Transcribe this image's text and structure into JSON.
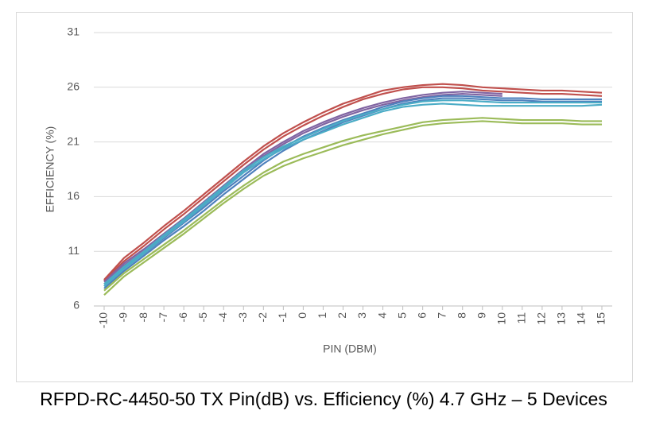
{
  "chart_data": {
    "type": "line",
    "title": "RFPD-RC-4450-50 TX Pin(dB) vs. Efficiency (%) 4.7 GHz – 5 Devices",
    "x_label": "PIN (DBM)",
    "y_label": "EFFICIENCY (%)",
    "x": [
      -10,
      -9,
      -8,
      -7,
      -6,
      -5,
      -4,
      -3,
      -2,
      -1,
      0,
      1,
      2,
      3,
      4,
      5,
      6,
      7,
      8,
      9,
      10,
      11,
      12,
      13,
      14,
      15
    ],
    "xlim": [
      -10,
      15
    ],
    "xticks": [
      -10,
      -9,
      -8,
      -7,
      -6,
      -5,
      -4,
      -3,
      -2,
      -1,
      0,
      1,
      2,
      3,
      4,
      5,
      6,
      7,
      8,
      9,
      10,
      11,
      12,
      13,
      14,
      15
    ],
    "ylim": [
      6,
      31
    ],
    "yticks": [
      6,
      11,
      16,
      21,
      26,
      31
    ],
    "grid": true,
    "series": [
      {
        "color": "#c0504d",
        "values": [
          8.4,
          10.4,
          11.8,
          13.3,
          14.7,
          16.2,
          17.7,
          19.2,
          20.6,
          21.8,
          22.8,
          23.7,
          24.5,
          25.1,
          25.7,
          26.0,
          26.2,
          26.3,
          26.2,
          26.0,
          25.9,
          25.8,
          25.7,
          25.7,
          25.6,
          25.5
        ]
      },
      {
        "color": "#c0504d",
        "values": [
          8.3,
          10.1,
          11.5,
          13.0,
          14.4,
          15.9,
          17.4,
          18.9,
          20.3,
          21.5,
          22.5,
          23.4,
          24.2,
          24.9,
          25.4,
          25.8,
          26.0,
          26.0,
          25.9,
          25.7,
          25.6,
          25.5,
          25.4,
          25.4,
          25.3,
          25.2
        ]
      },
      {
        "color": "#8064a2",
        "values": [
          8.2,
          9.9,
          11.2,
          12.6,
          14.0,
          15.5,
          17.0,
          18.5,
          19.9,
          21.0,
          22.0,
          22.8,
          23.5,
          24.1,
          24.6,
          25.0,
          25.3,
          25.5,
          25.6,
          25.5,
          25.4,
          null,
          null,
          null,
          null,
          null
        ]
      },
      {
        "color": "#8064a2",
        "values": [
          8.0,
          9.7,
          11.0,
          12.4,
          13.8,
          15.3,
          16.8,
          18.3,
          19.7,
          20.8,
          21.8,
          22.6,
          23.3,
          23.9,
          24.4,
          24.8,
          25.1,
          25.3,
          25.4,
          25.3,
          25.2,
          null,
          null,
          null,
          null,
          null
        ]
      },
      {
        "color": "#4f81bd",
        "values": [
          7.8,
          9.5,
          10.8,
          12.2,
          13.6,
          15.0,
          16.5,
          17.9,
          19.3,
          20.5,
          21.5,
          22.3,
          23.0,
          23.6,
          24.2,
          24.7,
          25.0,
          25.2,
          25.2,
          25.1,
          25.0,
          25.0,
          24.9,
          24.9,
          24.9,
          24.9
        ]
      },
      {
        "color": "#4f81bd",
        "values": [
          7.6,
          9.2,
          10.6,
          12.0,
          13.3,
          14.7,
          16.2,
          17.6,
          19.0,
          20.2,
          21.2,
          22.0,
          22.8,
          23.4,
          24.0,
          24.5,
          24.8,
          25.0,
          25.0,
          24.9,
          24.8,
          24.8,
          24.7,
          24.7,
          24.7,
          24.7
        ]
      },
      {
        "color": "#4bacc6",
        "values": [
          8.0,
          9.6,
          11.0,
          12.5,
          13.9,
          15.4,
          16.9,
          18.4,
          19.6,
          20.6,
          21.4,
          22.2,
          22.9,
          23.5,
          24.0,
          24.4,
          24.7,
          24.8,
          24.8,
          24.7,
          24.6,
          24.6,
          24.6,
          24.6,
          24.6,
          24.6
        ]
      },
      {
        "color": "#4bacc6",
        "values": [
          7.8,
          9.4,
          10.8,
          12.3,
          13.7,
          15.2,
          16.7,
          18.2,
          19.4,
          20.4,
          21.2,
          21.9,
          22.6,
          23.2,
          23.8,
          24.2,
          24.4,
          24.5,
          24.4,
          24.3,
          24.3,
          24.3,
          24.3,
          24.3,
          24.3,
          24.4
        ]
      },
      {
        "color": "#9bbb59",
        "values": [
          7.4,
          9.0,
          10.3,
          11.6,
          12.9,
          14.3,
          15.7,
          17.0,
          18.2,
          19.2,
          19.9,
          20.5,
          21.1,
          21.6,
          22.0,
          22.4,
          22.8,
          23.0,
          23.1,
          23.2,
          23.1,
          23.0,
          23.0,
          23.0,
          22.9,
          22.9
        ]
      },
      {
        "color": "#9bbb59",
        "values": [
          7.0,
          8.7,
          10.0,
          11.3,
          12.6,
          14.0,
          15.4,
          16.7,
          17.9,
          18.8,
          19.5,
          20.1,
          20.7,
          21.2,
          21.7,
          22.1,
          22.5,
          22.7,
          22.8,
          22.9,
          22.8,
          22.7,
          22.7,
          22.7,
          22.6,
          22.6
        ]
      }
    ]
  }
}
